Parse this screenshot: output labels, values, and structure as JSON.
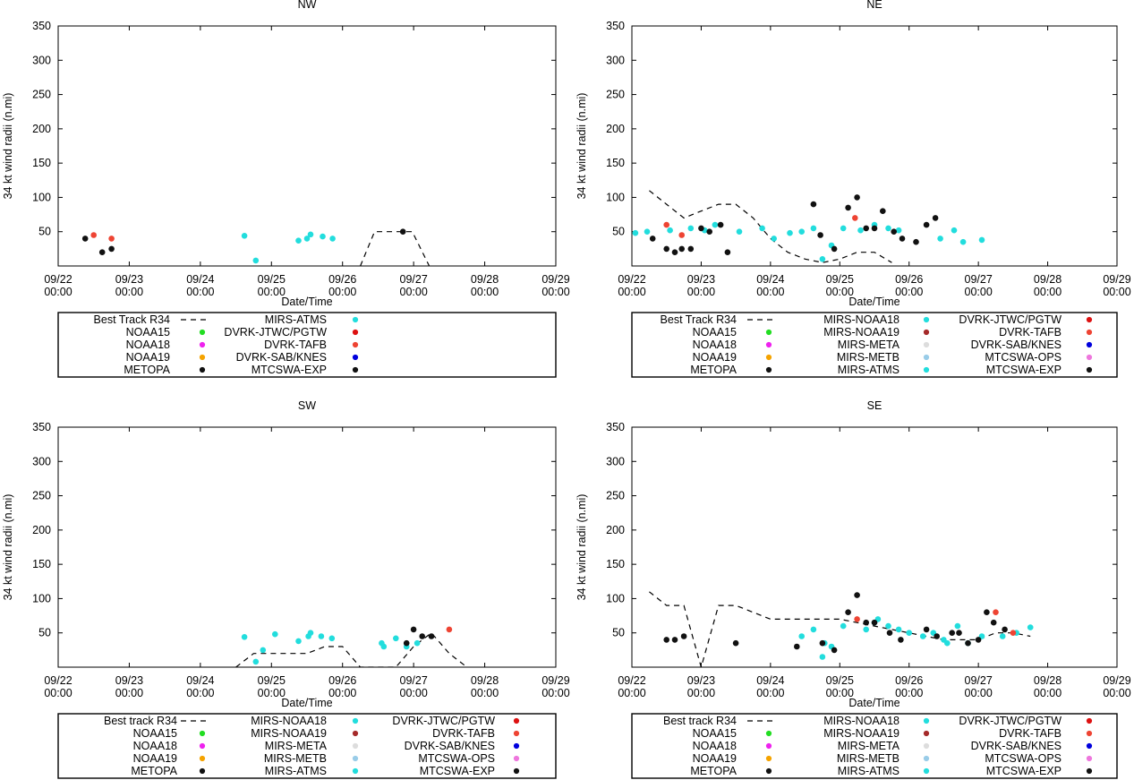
{
  "figure": {
    "x_label": "Date/Time",
    "y_label": "34 kt wind radii (n.mi)",
    "x_ticks": [
      {
        "day": "09/22",
        "time": "00:00"
      },
      {
        "day": "09/23",
        "time": "00:00"
      },
      {
        "day": "09/24",
        "time": "00:00"
      },
      {
        "day": "09/25",
        "time": "00:00"
      },
      {
        "day": "09/26",
        "time": "00:00"
      },
      {
        "day": "09/27",
        "time": "00:00"
      },
      {
        "day": "09/28",
        "time": "00:00"
      },
      {
        "day": "09/29",
        "time": "00:00"
      }
    ],
    "y_ticks": [
      "350",
      "300",
      "250",
      "200",
      "150",
      "100",
      "50"
    ]
  },
  "colors": {
    "NOAA15": "#22dd22",
    "NOAA18": "#ee22ee",
    "NOAA19": "#f5a300",
    "METOPA": "#111111",
    "MIRS-NOAA18": "#22dddd",
    "MIRS-NOAA19": "#a52a2a",
    "MIRS-META": "#dddddd",
    "MIRS-METB": "#99cce8",
    "MIRS-ATMS": "#22dddd",
    "DVRK-JTWC/PGTW": "#dd1111",
    "DVRK-TAFB": "#ee4433",
    "DVRK-SAB/KNES": "#0000dd",
    "MTCSWA-OPS": "#ee77dd",
    "MTCSWA-EXP": "#111111"
  },
  "chart_data": [
    {
      "type": "scatter",
      "title": "NW",
      "xlabel": "Date/Time",
      "ylabel": "34 kt wind radii (n.mi)",
      "xlim": [
        0,
        7
      ],
      "ylim": [
        0,
        350
      ],
      "x_unit": "days since 09/22 00:00",
      "best_track": {
        "label": "Best Track R34",
        "points": [
          [
            4.25,
            0
          ],
          [
            4.45,
            50
          ],
          [
            4.98,
            50
          ],
          [
            5.22,
            0
          ]
        ]
      },
      "legend": [
        [
          "Best Track R34",
          "NOAA15",
          "NOAA18",
          "NOAA19",
          "METOPA"
        ],
        [
          "MIRS-ATMS",
          "DVRK-JTWC/PGTW",
          "DVRK-TAFB",
          "DVRK-SAB/KNES",
          "MTCSWA-EXP"
        ]
      ],
      "series": [
        {
          "name": "MIRS-ATMS",
          "points": [
            [
              2.62,
              44
            ],
            [
              2.78,
              8
            ],
            [
              3.38,
              37
            ],
            [
              3.5,
              40
            ],
            [
              3.55,
              46
            ],
            [
              3.72,
              43
            ],
            [
              3.86,
              40
            ]
          ]
        },
        {
          "name": "DVRK-TAFB",
          "points": [
            [
              0.5,
              45
            ],
            [
              0.75,
              40
            ]
          ]
        },
        {
          "name": "MTCSWA-EXP",
          "points": [
            [
              0.38,
              40
            ],
            [
              0.62,
              20
            ],
            [
              0.75,
              25
            ],
            [
              4.85,
              50
            ]
          ]
        }
      ]
    },
    {
      "type": "scatter",
      "title": "NE",
      "xlabel": "Date/Time",
      "ylabel": "34 kt wind radii (n.mi)",
      "xlim": [
        0,
        7
      ],
      "ylim": [
        0,
        350
      ],
      "x_unit": "days since 09/22 00:00",
      "best_track": {
        "label": "Best Track R34",
        "points": [
          [
            0.25,
            110
          ],
          [
            0.5,
            90
          ],
          [
            0.75,
            70
          ],
          [
            1.0,
            80
          ],
          [
            1.25,
            90
          ],
          [
            1.5,
            90
          ],
          [
            1.75,
            70
          ],
          [
            2.0,
            40
          ],
          [
            2.25,
            20
          ],
          [
            2.5,
            10
          ],
          [
            2.75,
            5
          ],
          [
            3.0,
            10
          ],
          [
            3.25,
            20
          ],
          [
            3.5,
            20
          ],
          [
            3.75,
            5
          ]
        ]
      },
      "legend": [
        [
          "Best Track R34",
          "NOAA15",
          "NOAA18",
          "NOAA19",
          "METOPA"
        ],
        [
          "MIRS-NOAA18",
          "MIRS-NOAA19",
          "MIRS-META",
          "MIRS-METB",
          "MIRS-ATMS"
        ],
        [
          "DVRK-JTWC/PGTW",
          "DVRK-TAFB",
          "DVRK-SAB/KNES",
          "MTCSWA-OPS",
          "MTCSWA-EXP"
        ]
      ],
      "series": [
        {
          "name": "MIRS-ATMS",
          "points": [
            [
              0.05,
              48
            ],
            [
              0.22,
              50
            ],
            [
              0.55,
              52
            ],
            [
              0.85,
              55
            ],
            [
              1.05,
              52
            ],
            [
              1.2,
              60
            ],
            [
              1.55,
              50
            ],
            [
              1.88,
              55
            ],
            [
              2.05,
              40
            ],
            [
              2.28,
              48
            ],
            [
              2.45,
              50
            ],
            [
              2.62,
              55
            ],
            [
              2.75,
              10
            ],
            [
              2.88,
              30
            ],
            [
              3.05,
              55
            ],
            [
              3.3,
              52
            ],
            [
              3.5,
              60
            ],
            [
              3.7,
              55
            ],
            [
              3.85,
              52
            ],
            [
              4.45,
              40
            ],
            [
              4.65,
              52
            ],
            [
              4.78,
              35
            ],
            [
              5.05,
              38
            ]
          ]
        },
        {
          "name": "DVRK-TAFB",
          "points": [
            [
              0.5,
              60
            ],
            [
              0.72,
              45
            ],
            [
              3.22,
              70
            ]
          ]
        },
        {
          "name": "MTCSWA-EXP",
          "points": [
            [
              0.3,
              40
            ],
            [
              0.5,
              25
            ],
            [
              0.62,
              20
            ],
            [
              0.72,
              25
            ],
            [
              0.85,
              25
            ],
            [
              1.0,
              55
            ],
            [
              1.12,
              50
            ],
            [
              1.28,
              60
            ],
            [
              1.38,
              20
            ],
            [
              2.62,
              90
            ],
            [
              2.72,
              45
            ],
            [
              2.92,
              25
            ],
            [
              3.12,
              85
            ],
            [
              3.25,
              100
            ],
            [
              3.38,
              55
            ],
            [
              3.5,
              55
            ],
            [
              3.62,
              80
            ],
            [
              3.78,
              50
            ],
            [
              3.9,
              40
            ],
            [
              4.1,
              35
            ],
            [
              4.25,
              60
            ],
            [
              4.38,
              70
            ]
          ]
        }
      ]
    },
    {
      "type": "scatter",
      "title": "SW",
      "xlabel": "Date/Time",
      "ylabel": "34 kt wind radii (n.mi)",
      "xlim": [
        0,
        7
      ],
      "ylim": [
        0,
        350
      ],
      "x_unit": "days since 09/22 00:00",
      "best_track": {
        "label": "Best track R34",
        "points": [
          [
            2.5,
            0
          ],
          [
            2.75,
            20
          ],
          [
            3.0,
            20
          ],
          [
            3.25,
            20
          ],
          [
            3.5,
            20
          ],
          [
            3.75,
            30
          ],
          [
            4.0,
            30
          ],
          [
            4.25,
            0
          ],
          [
            4.75,
            0
          ],
          [
            5.0,
            30
          ],
          [
            5.25,
            50
          ],
          [
            5.5,
            20
          ],
          [
            5.75,
            0
          ]
        ]
      },
      "legend": [
        [
          "Best track R34",
          "NOAA15",
          "NOAA18",
          "NOAA19",
          "METOPA"
        ],
        [
          "MIRS-NOAA18",
          "MIRS-NOAA19",
          "MIRS-META",
          "MIRS-METB",
          "MIRS-ATMS"
        ],
        [
          "DVRK-JTWC/PGTW",
          "DVRK-TAFB",
          "DVRK-SAB/KNES",
          "MTCSWA-OPS",
          "MTCSWA-EXP"
        ]
      ],
      "series": [
        {
          "name": "MIRS-ATMS",
          "points": [
            [
              2.62,
              44
            ],
            [
              2.78,
              8
            ],
            [
              2.88,
              25
            ],
            [
              3.05,
              48
            ],
            [
              3.38,
              38
            ],
            [
              3.52,
              45
            ],
            [
              3.55,
              50
            ],
            [
              3.7,
              45
            ],
            [
              3.85,
              42
            ],
            [
              4.55,
              35
            ],
            [
              4.58,
              30
            ],
            [
              4.75,
              42
            ],
            [
              4.9,
              30
            ],
            [
              5.05,
              35
            ]
          ]
        },
        {
          "name": "DVRK-TAFB",
          "points": [
            [
              5.5,
              55
            ]
          ]
        },
        {
          "name": "MTCSWA-EXP",
          "points": [
            [
              4.9,
              35
            ],
            [
              5.0,
              55
            ],
            [
              5.12,
              45
            ],
            [
              5.25,
              45
            ]
          ]
        }
      ]
    },
    {
      "type": "scatter",
      "title": "SE",
      "xlabel": "Date/Time",
      "ylabel": "34 kt wind radii (n.mi)",
      "xlim": [
        0,
        7
      ],
      "ylim": [
        0,
        350
      ],
      "x_unit": "days since 09/22 00:00",
      "best_track": {
        "label": "Best track R34",
        "points": [
          [
            0.25,
            110
          ],
          [
            0.5,
            90
          ],
          [
            0.75,
            90
          ],
          [
            1.0,
            0
          ],
          [
            1.25,
            90
          ],
          [
            1.5,
            90
          ],
          [
            2.0,
            70
          ],
          [
            2.5,
            70
          ],
          [
            3.0,
            70
          ],
          [
            3.5,
            60
          ],
          [
            4.0,
            50
          ],
          [
            4.5,
            40
          ],
          [
            5.0,
            40
          ],
          [
            5.25,
            50
          ],
          [
            5.5,
            50
          ],
          [
            5.75,
            45
          ]
        ]
      },
      "legend": [
        [
          "Best track R34",
          "NOAA15",
          "NOAA18",
          "NOAA19",
          "METOPA"
        ],
        [
          "MIRS-NOAA18",
          "MIRS-NOAA19",
          "MIRS-META",
          "MIRS-METB",
          "MIRS-ATMS"
        ],
        [
          "DVRK-JTWC/PGTW",
          "DVRK-TAFB",
          "DVRK-SAB/KNES",
          "MTCSWA-OPS",
          "MTCSWA-EXP"
        ]
      ],
      "series": [
        {
          "name": "MIRS-ATMS",
          "points": [
            [
              2.45,
              45
            ],
            [
              2.62,
              55
            ],
            [
              2.75,
              15
            ],
            [
              2.78,
              35
            ],
            [
              2.88,
              30
            ],
            [
              3.05,
              60
            ],
            [
              3.38,
              55
            ],
            [
              3.5,
              65
            ],
            [
              3.55,
              70
            ],
            [
              3.7,
              60
            ],
            [
              3.85,
              55
            ],
            [
              4.0,
              50
            ],
            [
              4.2,
              45
            ],
            [
              4.35,
              50
            ],
            [
              4.5,
              40
            ],
            [
              4.55,
              35
            ],
            [
              4.7,
              60
            ],
            [
              4.85,
              35
            ],
            [
              5.05,
              45
            ],
            [
              5.35,
              45
            ],
            [
              5.55,
              50
            ],
            [
              5.75,
              58
            ]
          ]
        },
        {
          "name": "DVRK-TAFB",
          "points": [
            [
              3.25,
              70
            ],
            [
              5.25,
              80
            ],
            [
              5.5,
              50
            ]
          ]
        },
        {
          "name": "MTCSWA-EXP",
          "points": [
            [
              0.5,
              40
            ],
            [
              0.62,
              40
            ],
            [
              0.75,
              45
            ],
            [
              1.5,
              35
            ],
            [
              2.38,
              30
            ],
            [
              2.75,
              35
            ],
            [
              2.92,
              25
            ],
            [
              3.12,
              80
            ],
            [
              3.25,
              105
            ],
            [
              3.38,
              65
            ],
            [
              3.5,
              65
            ],
            [
              3.72,
              50
            ],
            [
              3.88,
              40
            ],
            [
              4.25,
              55
            ],
            [
              4.4,
              45
            ],
            [
              4.62,
              50
            ],
            [
              4.72,
              50
            ],
            [
              4.85,
              35
            ],
            [
              5.0,
              40
            ],
            [
              5.12,
              80
            ],
            [
              5.22,
              65
            ],
            [
              5.38,
              55
            ]
          ]
        }
      ]
    }
  ]
}
